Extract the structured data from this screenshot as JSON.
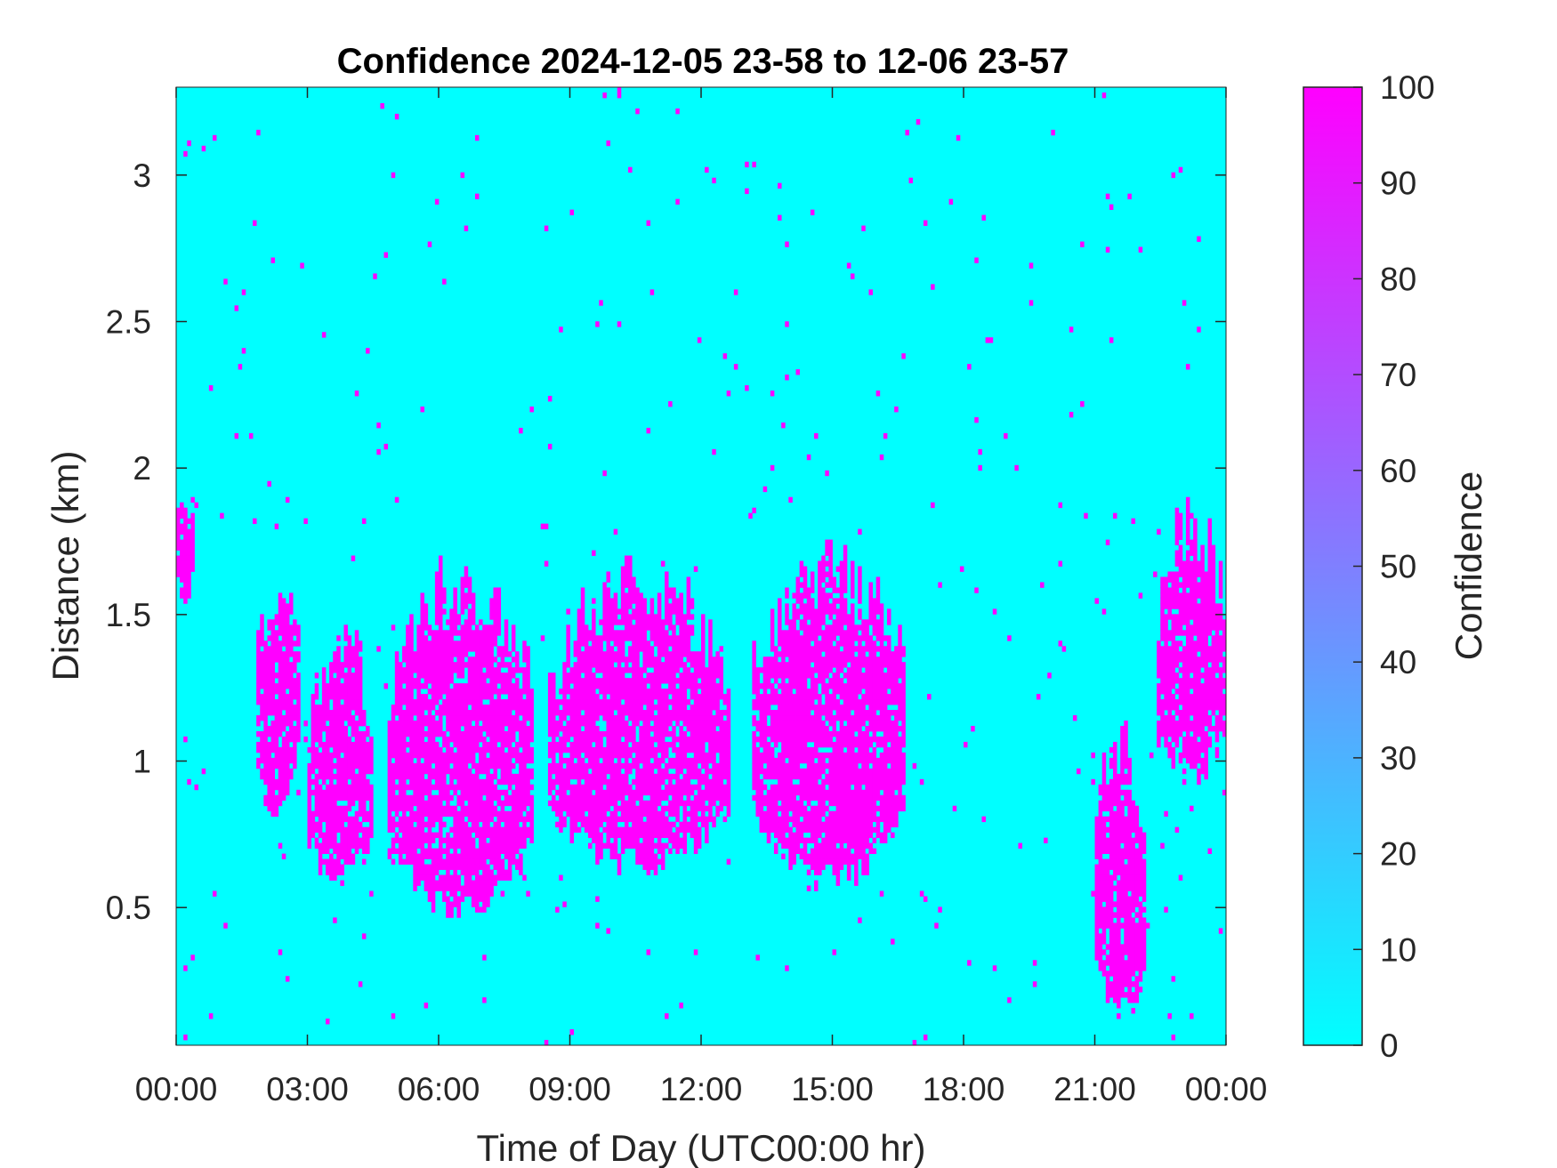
{
  "chart_data": {
    "type": "heatmap",
    "title": "Confidence 2024-12-05 23-58 to 12-06 23-57",
    "xlabel": "Time of Day (UTC00:00 hr)",
    "ylabel": "Distance (km)",
    "xlim_hours": [
      0,
      24
    ],
    "ylim": [
      0.03,
      3.3
    ],
    "x_ticks": [
      {
        "value": 0,
        "label": "00:00"
      },
      {
        "value": 3,
        "label": "03:00"
      },
      {
        "value": 6,
        "label": "06:00"
      },
      {
        "value": 9,
        "label": "09:00"
      },
      {
        "value": 12,
        "label": "12:00"
      },
      {
        "value": 15,
        "label": "15:00"
      },
      {
        "value": 18,
        "label": "18:00"
      },
      {
        "value": 21,
        "label": "21:00"
      },
      {
        "value": 24,
        "label": "00:00"
      }
    ],
    "y_ticks": [
      {
        "value": 0.5,
        "label": "0.5"
      },
      {
        "value": 1,
        "label": "1"
      },
      {
        "value": 1.5,
        "label": "1.5"
      },
      {
        "value": 2,
        "label": "2"
      },
      {
        "value": 2.5,
        "label": "2.5"
      },
      {
        "value": 3,
        "label": "3"
      }
    ],
    "colorbar": {
      "label": "Confidence",
      "range": [
        0,
        100
      ],
      "ticks": [
        {
          "value": 0,
          "label": "0"
        },
        {
          "value": 10,
          "label": "10"
        },
        {
          "value": 20,
          "label": "20"
        },
        {
          "value": 30,
          "label": "30"
        },
        {
          "value": 40,
          "label": "40"
        },
        {
          "value": 50,
          "label": "50"
        },
        {
          "value": 60,
          "label": "60"
        },
        {
          "value": 70,
          "label": "70"
        },
        {
          "value": 80,
          "label": "80"
        },
        {
          "value": 90,
          "label": "90"
        },
        {
          "value": 100,
          "label": "100"
        }
      ],
      "colormap": "cool",
      "low_color": "#00ffff",
      "high_color": "#ff00ff"
    },
    "background_value": 0,
    "high_confidence_value": 100,
    "high_confidence_regions": [
      {
        "t": [
          0.0,
          0.4
        ],
        "d": [
          1.55,
          1.9
        ]
      },
      {
        "t": [
          1.8,
          2.8
        ],
        "d": [
          0.85,
          1.6
        ]
      },
      {
        "t": [
          3.0,
          4.5
        ],
        "d": [
          0.6,
          1.4
        ]
      },
      {
        "t": [
          4.8,
          8.2
        ],
        "d": [
          0.5,
          1.6
        ]
      },
      {
        "t": [
          8.5,
          12.7
        ],
        "d": [
          0.65,
          1.6
        ]
      },
      {
        "t": [
          13.2,
          16.7
        ],
        "d": [
          0.6,
          1.65
        ]
      },
      {
        "t": [
          21.0,
          22.2
        ],
        "d": [
          0.15,
          1.05
        ]
      },
      {
        "t": [
          22.4,
          24.0
        ],
        "d": [
          0.95,
          1.8
        ]
      }
    ]
  }
}
